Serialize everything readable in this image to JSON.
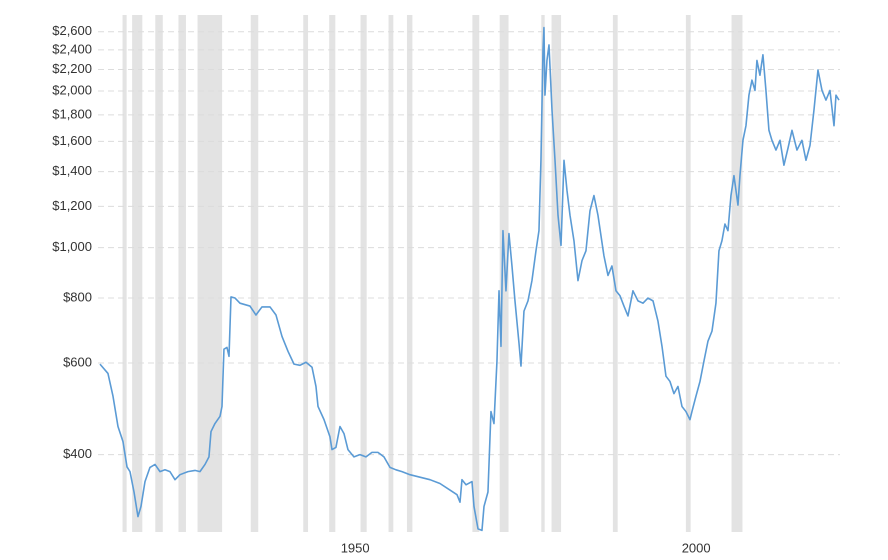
{
  "chart_data": {
    "type": "line",
    "log_scale": true,
    "grid": true,
    "xlim": [
      1915,
      2023.8
    ],
    "xticks": [
      1950,
      2000
    ],
    "ylim": [
      284,
      2800
    ],
    "yticks": [
      {
        "value": 400,
        "label": "$400"
      },
      {
        "value": 600,
        "label": "$600"
      },
      {
        "value": 800,
        "label": "$800"
      },
      {
        "value": 1000,
        "label": "$1,000"
      },
      {
        "value": 1200,
        "label": "$1,200"
      },
      {
        "value": 1400,
        "label": "$1,400"
      },
      {
        "value": 1600,
        "label": "$1,600"
      },
      {
        "value": 1800,
        "label": "$1,800"
      },
      {
        "value": 2000,
        "label": "$2,000"
      },
      {
        "value": 2200,
        "label": "$2,200"
      },
      {
        "value": 2400,
        "label": "$2,400"
      },
      {
        "value": 2600,
        "label": "$2,600"
      }
    ],
    "recession_color": "#e3e3e3",
    "recessions": [
      [
        1918.6,
        1919.2
      ],
      [
        1920.0,
        1921.5
      ],
      [
        1923.4,
        1924.5
      ],
      [
        1926.8,
        1927.9
      ],
      [
        1929.6,
        1933.2
      ],
      [
        1937.4,
        1938.5
      ],
      [
        1945.1,
        1945.8
      ],
      [
        1948.9,
        1949.8
      ],
      [
        1953.5,
        1954.4
      ],
      [
        1957.6,
        1958.3
      ],
      [
        1960.3,
        1961.1
      ],
      [
        1969.9,
        1970.9
      ],
      [
        1973.9,
        1975.2
      ],
      [
        1980.0,
        1980.5
      ],
      [
        1981.5,
        1982.9
      ],
      [
        1990.5,
        1991.2
      ],
      [
        2001.2,
        2001.9
      ],
      [
        2007.9,
        2009.5
      ]
    ],
    "x": [
      1915.29,
      1916.46,
      1917.2,
      1917.93,
      1918.66,
      1919.25,
      1919.69,
      1920.28,
      1920.86,
      1921.3,
      1921.89,
      1922.62,
      1923.36,
      1924.09,
      1924.82,
      1925.55,
      1926.29,
      1927.02,
      1928.19,
      1929.22,
      1929.95,
      1930.69,
      1931.27,
      1931.57,
      1932.15,
      1932.89,
      1933.18,
      1933.47,
      1933.91,
      1934.21,
      1934.5,
      1935.09,
      1935.82,
      1937.28,
      1938.16,
      1939.04,
      1940.22,
      1941.1,
      1941.98,
      1942.86,
      1943.74,
      1944.62,
      1945.5,
      1946.38,
      1946.96,
      1947.26,
      1948.14,
      1949.01,
      1949.31,
      1949.89,
      1950.48,
      1951.07,
      1951.65,
      1952.53,
      1953.41,
      1954.29,
      1955.17,
      1956.05,
      1956.93,
      1957.81,
      1958.69,
      1959.57,
      1960.75,
      1962.21,
      1963.68,
      1965.14,
      1966.61,
      1967.64,
      1968.08,
      1968.37,
      1968.96,
      1969.84,
      1970.13,
      1970.72,
      1971.3,
      1971.6,
      1972.18,
      1972.62,
      1973.06,
      1973.5,
      1973.8,
      1974.09,
      1974.38,
      1974.82,
      1975.26,
      1975.7,
      1976.14,
      1976.73,
      1977.02,
      1977.46,
      1978.05,
      1978.63,
      1979.22,
      1979.66,
      1979.95,
      1980.25,
      1980.39,
      1980.54,
      1980.83,
      1981.13,
      1981.57,
      1982.01,
      1982.45,
      1982.89,
      1983.33,
      1983.77,
      1984.21,
      1984.79,
      1985.38,
      1985.97,
      1986.55,
      1987.14,
      1987.72,
      1988.31,
      1989.19,
      1989.78,
      1990.36,
      1990.95,
      1991.54,
      1992.12,
      1992.71,
      1993.44,
      1994.18,
      1994.91,
      1995.64,
      1996.38,
      1997.11,
      1997.7,
      1998.28,
      1998.87,
      1999.45,
      2000.04,
      2000.63,
      2001.21,
      2001.8,
      2002.09,
      2002.68,
      2003.27,
      2003.85,
      2004.44,
      2005.03,
      2005.61,
      2006.05,
      2006.49,
      2006.93,
      2007.37,
      2007.81,
      2008.25,
      2008.84,
      2009.13,
      2009.57,
      2010.01,
      2010.45,
      2010.89,
      2011.33,
      2011.62,
      2012.06,
      2012.5,
      2012.94,
      2013.38,
      2013.82,
      2014.41,
      2015.0,
      2015.58,
      2016.17,
      2016.76,
      2017.49,
      2018.22,
      2018.81,
      2019.4,
      2019.98,
      2020.57,
      2021.16,
      2021.74,
      2022.33,
      2022.92,
      2023.21,
      2023.65
    ],
    "series": [
      {
        "color": "#5b9bd5",
        "values": [
          597,
          573,
          518,
          453,
          424,
          379,
          371,
          339,
          304,
          318,
          355,
          378,
          383,
          371,
          374,
          371,
          358,
          366,
          371,
          373,
          371,
          383,
          396,
          443,
          459,
          474,
          495,
          638,
          643,
          618,
          804,
          800,
          782,
          772,
          742,
          769,
          769,
          742,
          675,
          632,
          597,
          594,
          602,
          589,
          541,
          495,
          467,
          433,
          409,
          413,
          453,
          439,
          409,
          396,
          400,
          396,
          404,
          404,
          396,
          378,
          374,
          371,
          366,
          362,
          358,
          352,
          342,
          335,
          324,
          358,
          350,
          355,
          318,
          288,
          286,
          318,
          339,
          484,
          459,
          605,
          826,
          646,
          1078,
          826,
          1064,
          922,
          790,
          655,
          592,
          755,
          790,
          864,
          986,
          1078,
          1472,
          2400,
          2648,
          1964,
          2290,
          2452,
          1837,
          1472,
          1154,
          1010,
          1472,
          1287,
          1154,
          1031,
          864,
          944,
          986,
          1177,
          1259,
          1154,
          964,
          884,
          922,
          826,
          808,
          772,
          739,
          826,
          790,
          782,
          800,
          790,
          722,
          646,
          566,
          553,
          524,
          541,
          495,
          484,
          467,
          484,
          518,
          553,
          605,
          661,
          691,
          782,
          986,
          1031,
          1110,
          1078,
          1259,
          1375,
          1207,
          1375,
          1608,
          1715,
          1964,
          2099,
          2005,
          2290,
          2145,
          2348,
          2005,
          1681,
          1608,
          1540,
          1608,
          1440,
          1552,
          1681,
          1540,
          1608,
          1472,
          1572,
          1837,
          2195,
          2005,
          1921,
          2005,
          1715,
          1964,
          1921
        ]
      }
    ]
  }
}
